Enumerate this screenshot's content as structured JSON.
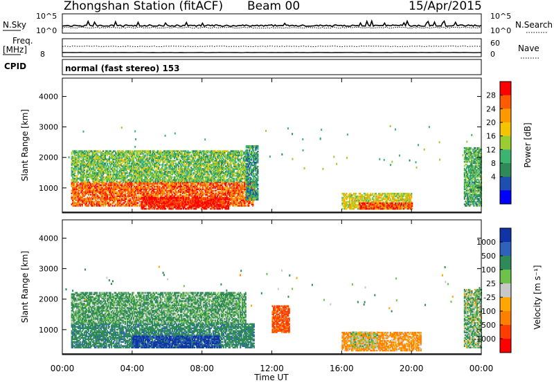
{
  "header": {
    "station": "Zhongshan Station (fitACF)",
    "beam": "Beam 00",
    "date": "15/Apr/2015"
  },
  "summary_panels": {
    "nsky_label": "N.Sky",
    "nsearch_label": "N.Search",
    "noise_ticks": [
      "10^5",
      "10^0"
    ],
    "freq_label": "Freq.",
    "freq_unit": "[MHz]",
    "freq_tick": "8",
    "nave_label": "Nave",
    "nave_ticks": [
      "60",
      "0"
    ],
    "cpid_label": "CPID",
    "cpid_text": "normal (fast stereo) 153"
  },
  "colorbars": {
    "power": {
      "label": "Power [dB]",
      "ticks": [
        "28",
        "24",
        "20",
        "16",
        "12",
        "8",
        "4"
      ],
      "colors": [
        "#ff0000",
        "#ff5a00",
        "#ff9900",
        "#f5c400",
        "#9acd32",
        "#3cb371",
        "#2e8b57",
        "#1e4fb0",
        "#0000ff"
      ]
    },
    "velocity": {
      "label": "Velocity [m s⁻¹]",
      "ticks": [
        "1000",
        "500",
        "100",
        "25",
        "-25",
        "-100",
        "-500",
        "-1000"
      ],
      "colors": [
        "#1034a6",
        "#2f62b8",
        "#2e8b57",
        "#6cc24a",
        "#c8c8c8",
        "#ffa500",
        "#ff7f00",
        "#ff3d00",
        "#ff0000"
      ]
    }
  },
  "chart_data": [
    {
      "type": "heatmap",
      "title": "",
      "xlabel": "Time UT",
      "ylabel": "Slant Range [km]",
      "xlim": [
        "00:00",
        "24:00"
      ],
      "ylim": [
        180,
        4600
      ],
      "xticks": [
        "00:00",
        "04:00",
        "08:00",
        "12:00",
        "16:00",
        "20:00",
        "00:00"
      ],
      "yticks": [
        1000,
        2000,
        3000,
        4000
      ],
      "value": "Power [dB]",
      "regions": [
        {
          "t": [
            0.5,
            11.0
          ],
          "r": [
            400,
            1200
          ],
          "value": 24
        },
        {
          "t": [
            4.5,
            9.5
          ],
          "r": [
            300,
            700
          ],
          "value": 28
        },
        {
          "t": [
            0.5,
            10.5
          ],
          "r": [
            1200,
            2200
          ],
          "value": 12
        },
        {
          "t": [
            10.5,
            11.2
          ],
          "r": [
            600,
            2400
          ],
          "value": 8
        },
        {
          "t": [
            16.0,
            20.0
          ],
          "r": [
            300,
            800
          ],
          "value": 16
        },
        {
          "t": [
            17.0,
            20.0
          ],
          "r": [
            300,
            500
          ],
          "value": 26
        },
        {
          "t": [
            23.0,
            24.0
          ],
          "r": [
            400,
            2300
          ],
          "value": 10
        }
      ]
    },
    {
      "type": "heatmap",
      "title": "",
      "xlabel": "Time UT",
      "ylabel": "Slant Range [km]",
      "xlim": [
        "00:00",
        "24:00"
      ],
      "ylim": [
        180,
        4600
      ],
      "xticks": [
        "00:00",
        "04:00",
        "08:00",
        "12:00",
        "16:00",
        "20:00",
        "00:00"
      ],
      "yticks": [
        1000,
        2000,
        3000,
        4000
      ],
      "value": "Velocity [m s-1]",
      "regions": [
        {
          "t": [
            0.5,
            11.0
          ],
          "r": [
            400,
            1200
          ],
          "value": 300
        },
        {
          "t": [
            4.0,
            9.0
          ],
          "r": [
            400,
            800
          ],
          "value": 1000
        },
        {
          "t": [
            0.5,
            10.5
          ],
          "r": [
            1200,
            2200
          ],
          "value": 100
        },
        {
          "t": [
            12.0,
            13.0
          ],
          "r": [
            900,
            1800
          ],
          "value": -500
        },
        {
          "t": [
            16.0,
            20.5
          ],
          "r": [
            300,
            900
          ],
          "value": -100
        },
        {
          "t": [
            16.5,
            18.0
          ],
          "r": [
            400,
            900
          ],
          "value": 0
        },
        {
          "t": [
            23.0,
            24.0
          ],
          "r": [
            400,
            2300
          ],
          "value": 60
        }
      ]
    }
  ]
}
